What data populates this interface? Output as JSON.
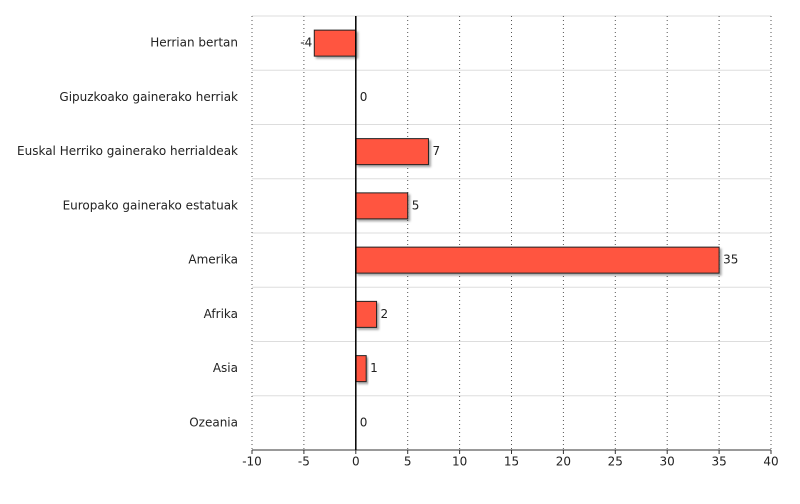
{
  "chart_data": {
    "type": "hbar",
    "categories": [
      "Herrian bertan",
      "Gipuzkoako gainerako herriak",
      "Euskal Herriko gainerako herrialdeak",
      "Europako gainerako estatuak",
      "Amerika",
      "Afrika",
      "Asia",
      "Ozeania"
    ],
    "values": [
      -4,
      0,
      7,
      5,
      35,
      2,
      1,
      0
    ],
    "color": "#ff5540",
    "xlim": [
      -10,
      40
    ],
    "xticks": [
      -10,
      -5,
      0,
      5,
      10,
      15,
      20,
      25,
      30,
      35,
      40
    ],
    "grid": true
  }
}
